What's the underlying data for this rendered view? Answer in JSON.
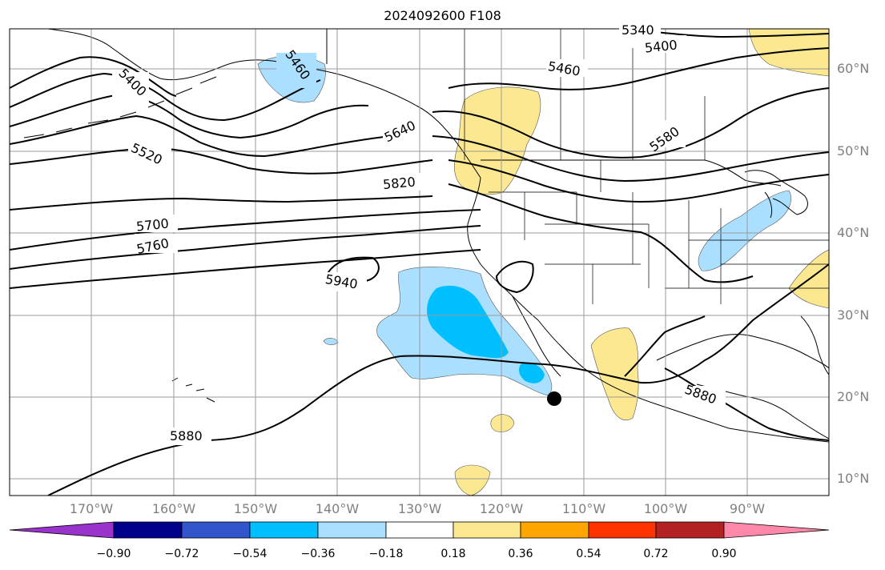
{
  "title": "2024092600 F108",
  "latitude_labels": [
    "60°N",
    "50°N",
    "40°N",
    "30°N",
    "20°N",
    "10°N"
  ],
  "longitude_labels": [
    "170°W",
    "160°W",
    "150°W",
    "140°W",
    "130°W",
    "120°W",
    "110°W",
    "100°W",
    "90°W"
  ],
  "contour_labels": [
    "5340",
    "5400",
    "5460",
    "5400",
    "5460",
    "5520",
    "5640",
    "5580",
    "5820",
    "5700",
    "5760",
    "5940",
    "5880",
    "5880"
  ],
  "colorbar": {
    "ticks": [
      "−0.90",
      "−0.72",
      "−0.54",
      "−0.36",
      "−0.18",
      "0.18",
      "0.36",
      "0.54",
      "0.72",
      "0.90"
    ],
    "colors": [
      "#9933cc",
      "#00008b",
      "#3355cc",
      "#00bfff",
      "#aadfff",
      "#ffffff",
      "#fbe890",
      "#ffa500",
      "#ff3300",
      "#b22222",
      "#ff88aa"
    ]
  },
  "colors": {
    "land_outline": "#000000",
    "grid": "#9a9a9a",
    "shade_light_blue": "#aadfff",
    "shade_blue": "#00bfff",
    "shade_yellow": "#fbe890"
  },
  "marker": "black-dot"
}
